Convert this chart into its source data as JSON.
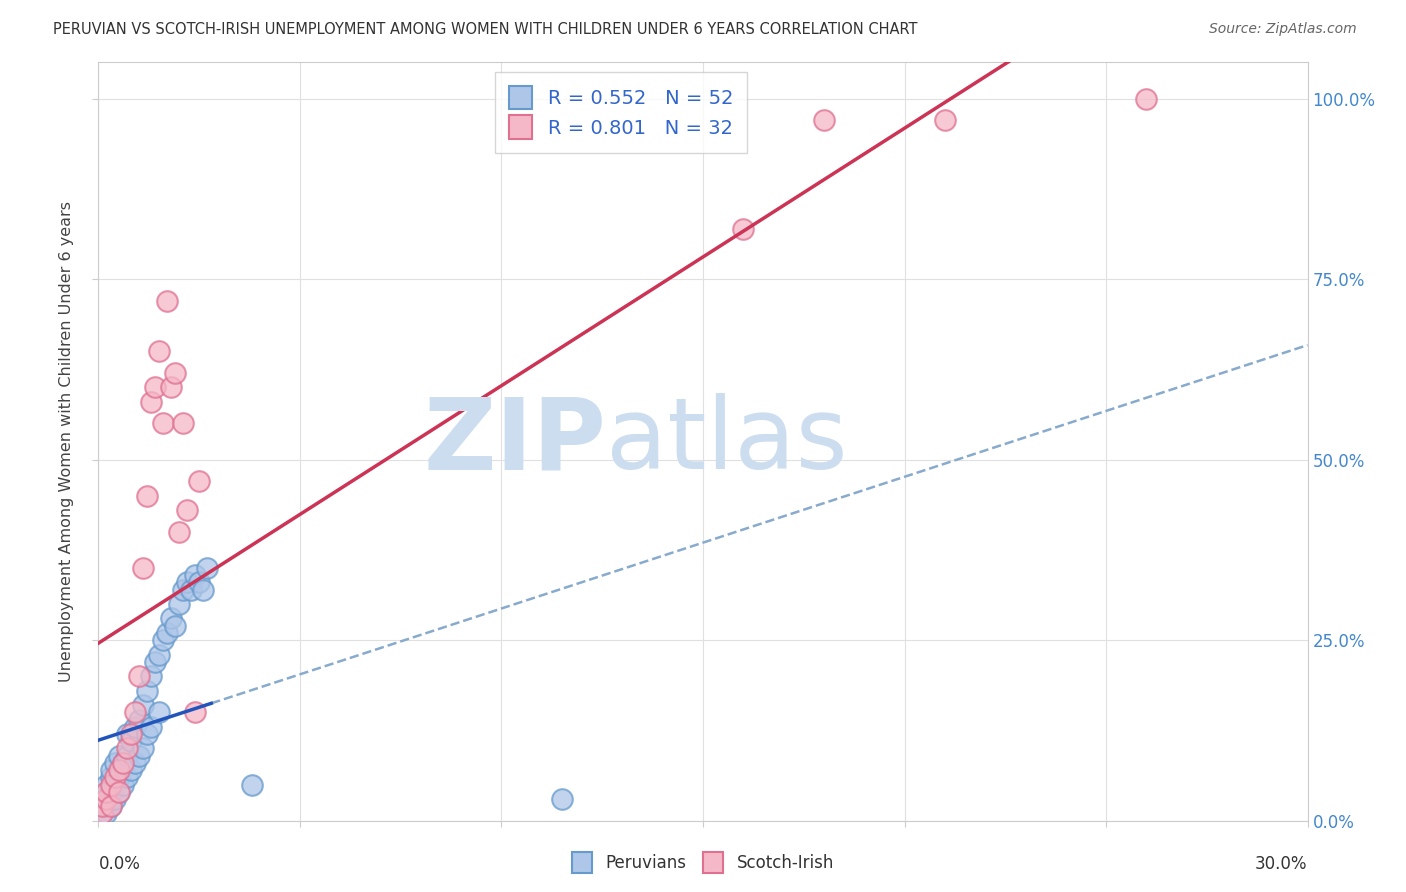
{
  "title": "PERUVIAN VS SCOTCH-IRISH UNEMPLOYMENT AMONG WOMEN WITH CHILDREN UNDER 6 YEARS CORRELATION CHART",
  "source": "Source: ZipAtlas.com",
  "ylabel": "Unemployment Among Women with Children Under 6 years",
  "legend_blue_label": "R = 0.552   N = 52",
  "legend_pink_label": "R = 0.801   N = 32",
  "legend_peruvians": "Peruvians",
  "legend_scotchirish": "Scotch-Irish",
  "blue_scatter_face": "#aec6e8",
  "blue_scatter_edge": "#6699cc",
  "pink_scatter_face": "#f4b8c8",
  "pink_scatter_edge": "#e07090",
  "blue_line_color": "#2255bb",
  "pink_line_color": "#cc3355",
  "dashed_line_color": "#88aacc",
  "watermark_color": "#ccddf0",
  "background_color": "#ffffff",
  "grid_color": "#e0e0e0",
  "title_color": "#333333",
  "source_color": "#666666",
  "right_axis_color": "#4488cc",
  "legend_r_color": "#3366cc",
  "peru_x": [
    0.001,
    0.001,
    0.001,
    0.002,
    0.002,
    0.002,
    0.002,
    0.003,
    0.003,
    0.003,
    0.003,
    0.003,
    0.004,
    0.004,
    0.004,
    0.005,
    0.005,
    0.005,
    0.006,
    0.006,
    0.007,
    0.007,
    0.007,
    0.008,
    0.008,
    0.009,
    0.009,
    0.01,
    0.01,
    0.011,
    0.011,
    0.012,
    0.012,
    0.013,
    0.013,
    0.014,
    0.015,
    0.015,
    0.016,
    0.017,
    0.018,
    0.019,
    0.02,
    0.021,
    0.022,
    0.023,
    0.024,
    0.025,
    0.026,
    0.027,
    0.115,
    0.038
  ],
  "peru_y": [
    0.01,
    0.02,
    0.03,
    0.01,
    0.02,
    0.04,
    0.05,
    0.02,
    0.03,
    0.04,
    0.06,
    0.07,
    0.03,
    0.05,
    0.08,
    0.04,
    0.06,
    0.09,
    0.05,
    0.08,
    0.06,
    0.09,
    0.12,
    0.07,
    0.11,
    0.08,
    0.13,
    0.09,
    0.14,
    0.1,
    0.16,
    0.12,
    0.18,
    0.13,
    0.2,
    0.22,
    0.15,
    0.23,
    0.25,
    0.26,
    0.28,
    0.27,
    0.3,
    0.32,
    0.33,
    0.32,
    0.34,
    0.33,
    0.32,
    0.35,
    0.03,
    0.05
  ],
  "scotch_x": [
    0.001,
    0.001,
    0.002,
    0.002,
    0.003,
    0.003,
    0.004,
    0.005,
    0.005,
    0.006,
    0.007,
    0.008,
    0.009,
    0.01,
    0.011,
    0.012,
    0.013,
    0.014,
    0.015,
    0.016,
    0.017,
    0.018,
    0.019,
    0.02,
    0.021,
    0.022,
    0.024,
    0.025,
    0.16,
    0.18,
    0.21,
    0.26
  ],
  "scotch_y": [
    0.01,
    0.02,
    0.03,
    0.04,
    0.02,
    0.05,
    0.06,
    0.04,
    0.07,
    0.08,
    0.1,
    0.12,
    0.15,
    0.2,
    0.35,
    0.45,
    0.58,
    0.6,
    0.65,
    0.55,
    0.72,
    0.6,
    0.62,
    0.4,
    0.55,
    0.43,
    0.15,
    0.47,
    0.82,
    0.97,
    0.97,
    1.0
  ],
  "xlim": [
    0.0,
    0.3
  ],
  "ylim": [
    0.0,
    1.05
  ]
}
